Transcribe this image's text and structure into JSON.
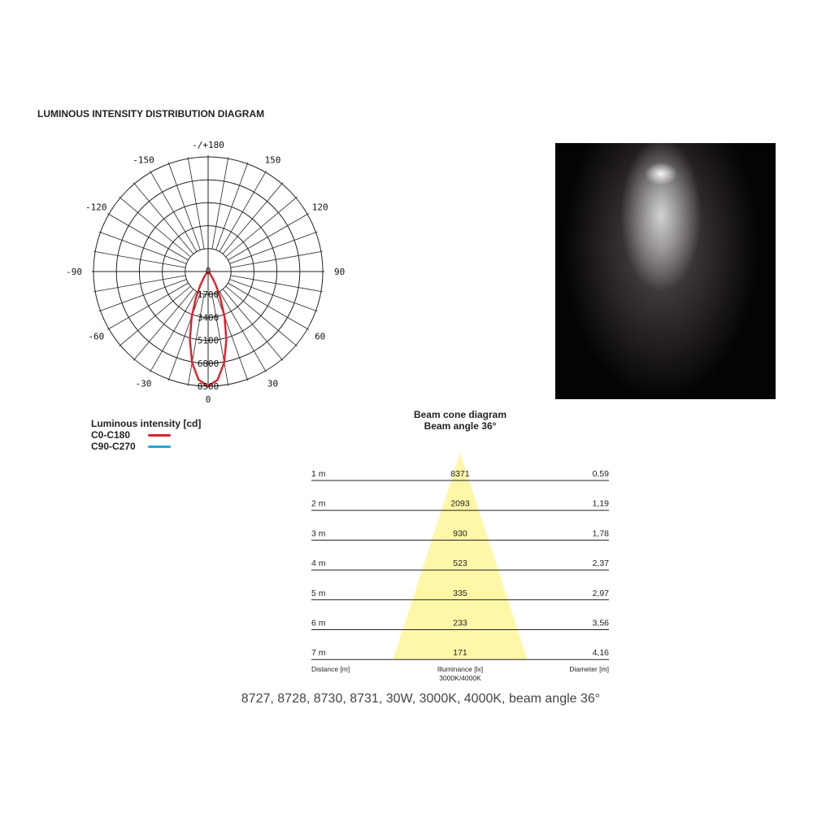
{
  "chart_data": [
    {
      "type": "polar-line",
      "title": "LUMINOUS INTENSITY DISTRIBUTION DIAGRAM",
      "angle_labels": [
        {
          "angle": 180,
          "label": "-/+180"
        },
        {
          "angle": -150,
          "label": "-150"
        },
        {
          "angle": 150,
          "label": "150"
        },
        {
          "angle": -120,
          "label": "-120"
        },
        {
          "angle": 120,
          "label": "120"
        },
        {
          "angle": -90,
          "label": "-90"
        },
        {
          "angle": 90,
          "label": "90"
        },
        {
          "angle": -60,
          "label": "-60"
        },
        {
          "angle": 60,
          "label": "60"
        },
        {
          "angle": -30,
          "label": "-30"
        },
        {
          "angle": 30,
          "label": "30"
        },
        {
          "angle": 0,
          "label": "0"
        }
      ],
      "radial_ticks": [
        "0",
        "1700",
        "3400",
        "5100",
        "6800",
        "8500"
      ],
      "radial_range": [
        0,
        8500
      ],
      "angular_grid_step_deg": 10,
      "grid": true,
      "legend_title": "Luminous intensity [cd]",
      "legend_placement": "bottom-left",
      "series": [
        {
          "name": "C0-C180",
          "color": "#e0202a",
          "angles": [
            0,
            5,
            10,
            15,
            20,
            25,
            30,
            35,
            40,
            45,
            50
          ],
          "values": [
            8500,
            8060,
            6860,
            5230,
            3550,
            2140,
            1130,
            520,
            205,
            65,
            0
          ]
        },
        {
          "name": "C90-C270",
          "color": "#1aa8e0",
          "angles": [
            0,
            5,
            10,
            15,
            20,
            25,
            30,
            35,
            40,
            45,
            50
          ],
          "values": [
            8480,
            8040,
            6840,
            5200,
            3520,
            2120,
            1110,
            510,
            200,
            60,
            0
          ]
        }
      ]
    },
    {
      "type": "table",
      "title": "Beam cone diagram",
      "subtitle": "Beam angle 36°",
      "beam_angle_deg": 36,
      "cone_color": "#fff7a8",
      "columns": [
        "Distance [m]",
        "Illuminance [lx]",
        "Diameter [m]"
      ],
      "column_note": "3000K/4000K",
      "rows": [
        {
          "distance": "1 m",
          "illuminance": "8371",
          "diameter": "0,59"
        },
        {
          "distance": "2 m",
          "illuminance": "2093",
          "diameter": "1,19"
        },
        {
          "distance": "3 m",
          "illuminance": "930",
          "diameter": "1,78"
        },
        {
          "distance": "4 m",
          "illuminance": "523",
          "diameter": "2,37"
        },
        {
          "distance": "5 m",
          "illuminance": "335",
          "diameter": "2,97"
        },
        {
          "distance": "6 m",
          "illuminance": "233",
          "diameter": "3,56"
        },
        {
          "distance": "7 m",
          "illuminance": "171",
          "diameter": "4,16"
        }
      ]
    }
  ],
  "caption": "8727, 8728, 8730, 8731, 30W, 3000K, 4000K, beam angle 36°"
}
